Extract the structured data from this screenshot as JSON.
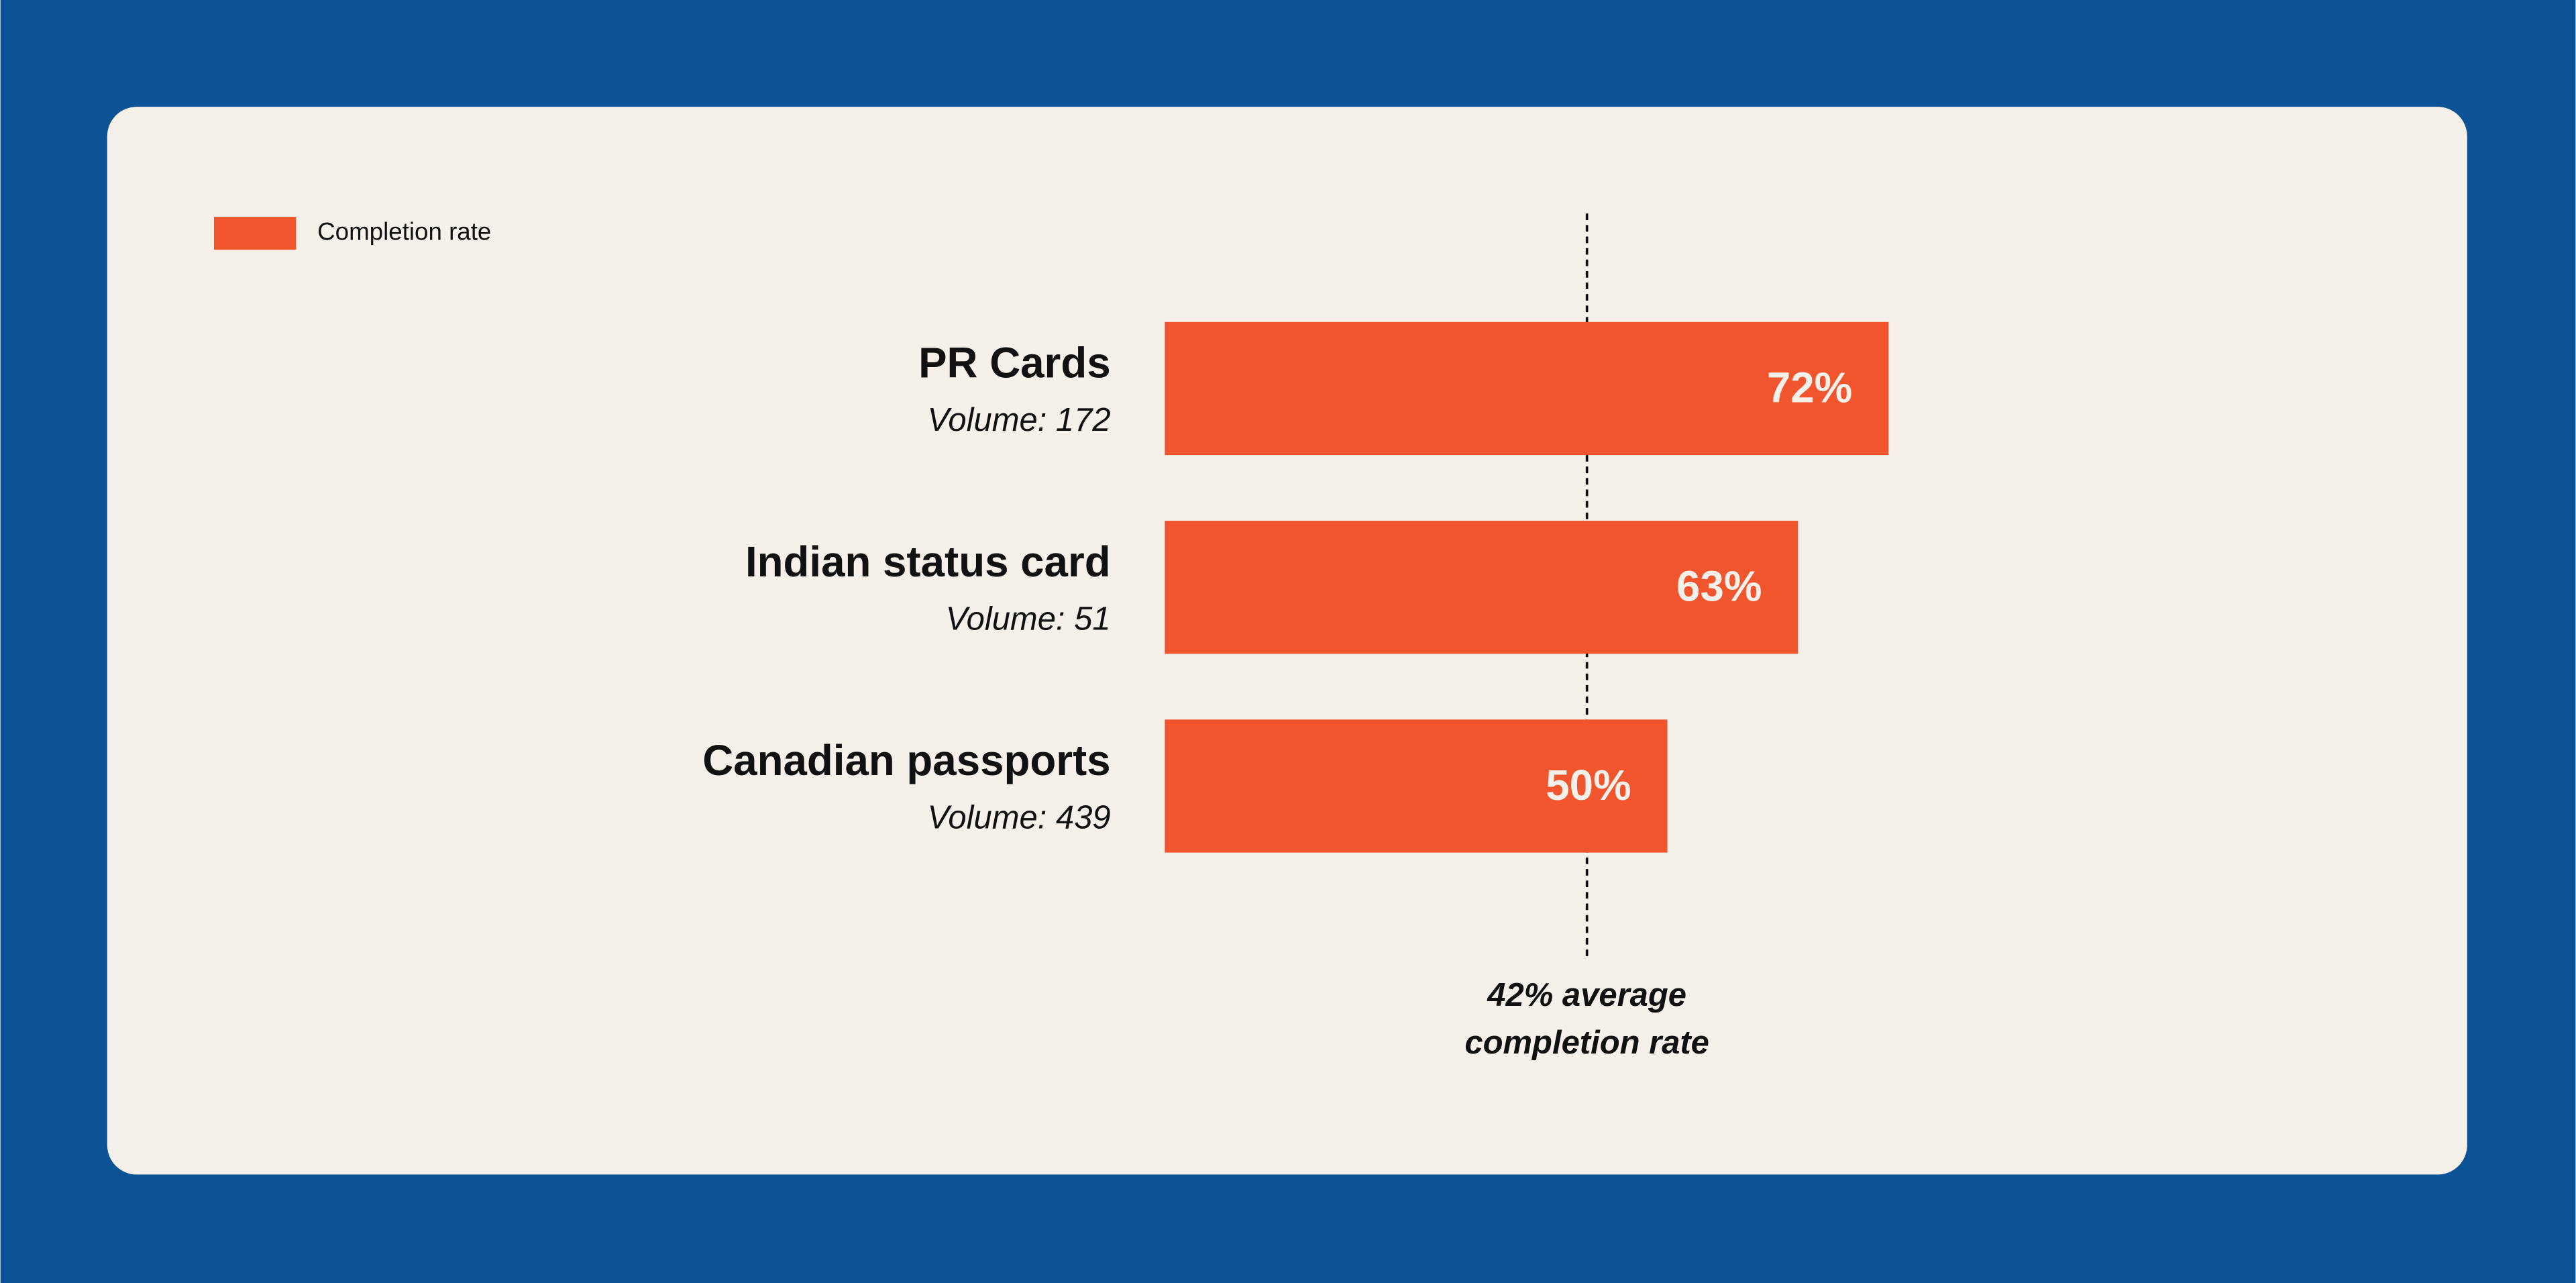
{
  "chart_data": {
    "type": "bar",
    "orientation": "horizontal",
    "categories": [
      "PR Cards",
      "Indian status card",
      "Canadian passports"
    ],
    "volume_labels": [
      "Volume: 172",
      "Volume: 51",
      "Volume: 439"
    ],
    "series": [
      {
        "name": "Completion rate",
        "color": "#f0552d",
        "values": [
          72,
          63,
          50
        ],
        "value_labels": [
          "72%",
          "63%",
          "50%"
        ]
      }
    ],
    "xlim": [
      0,
      100
    ],
    "reference_line": {
      "value": 42,
      "label": [
        "42% average",
        "completion rate"
      ]
    },
    "legend": "top-left",
    "background": "#0b5394",
    "card_color": "#f5f0ea"
  }
}
